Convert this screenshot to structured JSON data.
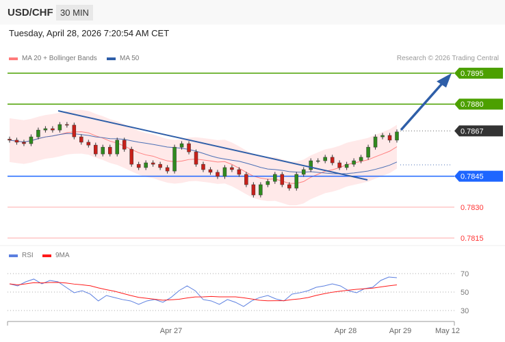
{
  "header": {
    "symbol": "USD/CHF",
    "timeframe": "30 MIN"
  },
  "timestamp": "Tuesday, April 28, 2026 7:20:54 AM CET",
  "copyright": "Research © 2026 Trading Central",
  "chart_data": [
    {
      "type": "candlestick",
      "title": "USD/CHF 30 MIN",
      "legend": [
        {
          "name": "MA 20 + Bollinger Bands",
          "color": "#ff7b7b"
        },
        {
          "name": "MA 50",
          "color": "#2e5ea8"
        }
      ],
      "ylim": [
        0.781,
        0.79
      ],
      "closes": [
        0.78625,
        0.78615,
        0.78608,
        0.78641,
        0.78674,
        0.78681,
        0.78674,
        0.78701,
        0.78698,
        0.78641,
        0.78615,
        0.78601,
        0.78558,
        0.78591,
        0.78558,
        0.78625,
        0.78581,
        0.78508,
        0.78492,
        0.78515,
        0.78508,
        0.78492,
        0.78475,
        0.78591,
        0.78608,
        0.78568,
        0.78508,
        0.78482,
        0.78469,
        0.78449,
        0.78492,
        0.78482,
        0.78459,
        0.78409,
        0.78359,
        0.78409,
        0.78425,
        0.78459,
        0.78409,
        0.78392,
        0.78459,
        0.78482,
        0.78525,
        0.78525,
        0.78542,
        0.78515,
        0.78492,
        0.78508,
        0.78525,
        0.78542,
        0.78591,
        0.78641,
        0.78648,
        0.78625,
        0.78665
      ],
      "levels": [
        {
          "value": "0.7895",
          "kind": "resistance",
          "color": "#4ca000"
        },
        {
          "value": "0.7880",
          "kind": "resistance",
          "color": "#4ca000"
        },
        {
          "value": "0.7867",
          "kind": "current",
          "color": "#333333"
        },
        {
          "value": "0.7845",
          "kind": "pivot",
          "color": "#1e66ff"
        },
        {
          "value": "0.7830",
          "kind": "support",
          "color": "#ff3333"
        },
        {
          "value": "0.7815",
          "kind": "support",
          "color": "#ff3333"
        }
      ],
      "x_ticks": [
        "Apr 27",
        "Apr 28",
        "Apr 29",
        "May 12"
      ]
    },
    {
      "type": "line",
      "title": "RSI",
      "legend": [
        {
          "name": "RSI",
          "color": "#5b7fe0"
        },
        {
          "name": "9MA",
          "color": "#ff1a1a"
        }
      ],
      "ylim": [
        20,
        80
      ],
      "y_ticks": [
        "70",
        "50",
        "30"
      ],
      "rsi": [
        58.9,
        56.7,
        61.1,
        64.1,
        58.9,
        62.6,
        61.1,
        55.2,
        49.3,
        51.5,
        47.8,
        40.4,
        46.3,
        44.1,
        41.9,
        40.4,
        36.7,
        40.4,
        41.9,
        38.9,
        44.1,
        51.5,
        56.7,
        51.5,
        41.9,
        40.4,
        36.7,
        41.9,
        38.9,
        34.4,
        40.4,
        44.1,
        46.3,
        42.6,
        40.4,
        47.8,
        49.3,
        51.5,
        55.2,
        56.7,
        58.9,
        56.7,
        51.5,
        49.3,
        53.7,
        55.2,
        62.6,
        66.3,
        65.6
      ]
    }
  ]
}
